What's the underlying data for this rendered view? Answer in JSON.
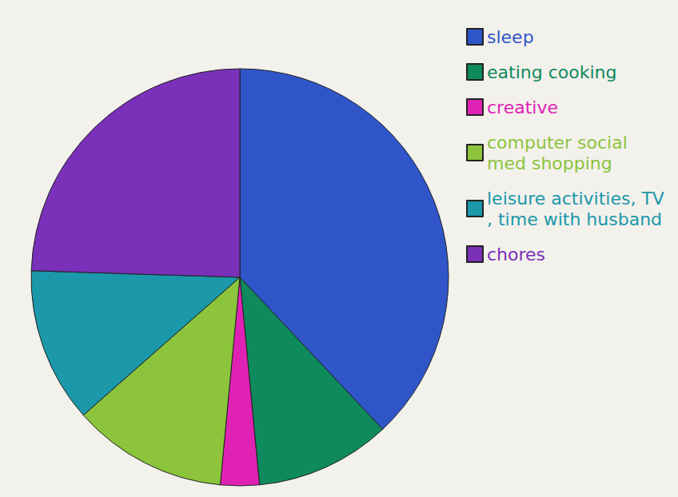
{
  "chart_data": {
    "type": "pie",
    "categories": [
      "sleep",
      "eating cooking",
      "creative",
      "computer social med shopping",
      "leisure activities, TV, time with husband",
      "chores"
    ],
    "values": [
      38,
      10.5,
      3,
      12,
      12,
      24.5
    ],
    "colors": [
      "#2f55c9",
      "#0f8a5c",
      "#e022b4",
      "#8cc43c",
      "#1b98aa",
      "#7a30b8"
    ],
    "legend": "right"
  }
}
